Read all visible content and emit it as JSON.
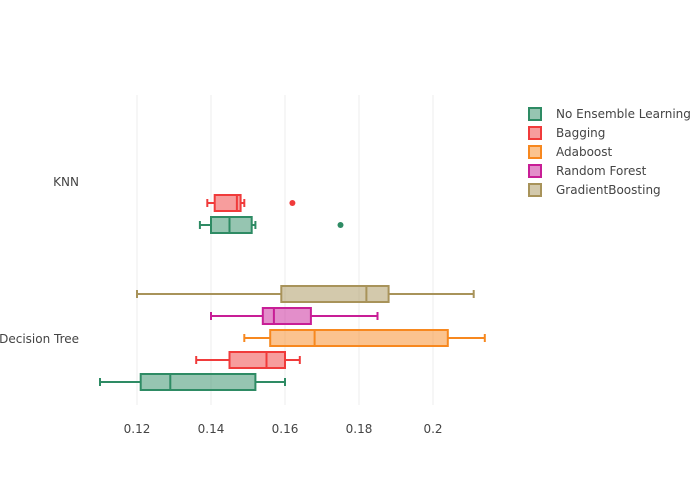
{
  "chart_data": {
    "type": "boxplot",
    "orientation": "horizontal",
    "categories": [
      "KNN",
      "Decision Tree"
    ],
    "x_ticks": [
      0.12,
      0.14,
      0.16,
      0.18,
      0.2
    ],
    "x_tick_labels": [
      "0.12",
      "0.14",
      "0.16",
      "0.18",
      "0.2"
    ],
    "xlim": [
      0.11,
      0.215
    ],
    "grid": true,
    "legend_position": "top-right",
    "series": [
      {
        "name": "No Ensemble Learning",
        "color": "#2e8b64",
        "boxes": {
          "KNN": {
            "min": 0.137,
            "q1": 0.14,
            "median": 0.145,
            "q3": 0.151,
            "max": 0.152,
            "outliers": [
              0.175
            ]
          },
          "Decision Tree": {
            "min": 0.11,
            "q1": 0.121,
            "median": 0.129,
            "q3": 0.152,
            "max": 0.16,
            "outliers": []
          }
        }
      },
      {
        "name": "Bagging",
        "color": "#f03b3b",
        "boxes": {
          "KNN": {
            "min": 0.139,
            "q1": 0.141,
            "median": 0.147,
            "q3": 0.148,
            "max": 0.149,
            "outliers": [
              0.162
            ]
          },
          "Decision Tree": {
            "min": 0.136,
            "q1": 0.145,
            "median": 0.155,
            "q3": 0.16,
            "max": 0.164,
            "outliers": []
          }
        }
      },
      {
        "name": "Adaboost",
        "color": "#f7881f",
        "boxes": {
          "Decision Tree": {
            "min": 0.149,
            "q1": 0.156,
            "median": 0.168,
            "q3": 0.204,
            "max": 0.214,
            "outliers": []
          }
        }
      },
      {
        "name": "Random Forest",
        "color": "#c81e96",
        "boxes": {
          "Decision Tree": {
            "min": 0.14,
            "q1": 0.154,
            "median": 0.157,
            "q3": 0.167,
            "max": 0.185,
            "outliers": []
          }
        }
      },
      {
        "name": "GradientBoosting",
        "color": "#a8935a",
        "boxes": {
          "Decision Tree": {
            "min": 0.12,
            "q1": 0.159,
            "median": 0.182,
            "q3": 0.188,
            "max": 0.211,
            "outliers": []
          }
        }
      }
    ]
  }
}
